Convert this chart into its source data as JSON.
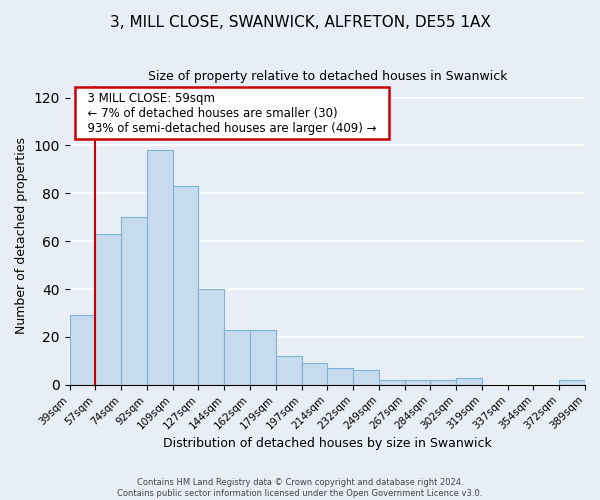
{
  "title": "3, MILL CLOSE, SWANWICK, ALFRETON, DE55 1AX",
  "subtitle": "Size of property relative to detached houses in Swanwick",
  "xlabel": "Distribution of detached houses by size in Swanwick",
  "ylabel": "Number of detached properties",
  "tick_labels": [
    "39sqm",
    "57sqm",
    "74sqm",
    "92sqm",
    "109sqm",
    "127sqm",
    "144sqm",
    "162sqm",
    "179sqm",
    "197sqm",
    "214sqm",
    "232sqm",
    "249sqm",
    "267sqm",
    "284sqm",
    "302sqm",
    "319sqm",
    "337sqm",
    "354sqm",
    "372sqm",
    "389sqm"
  ],
  "bar_heights": [
    29,
    63,
    70,
    98,
    83,
    40,
    23,
    23,
    12,
    9,
    7,
    6,
    2,
    2,
    2,
    3,
    0,
    0,
    0,
    2
  ],
  "bar_color": "#c6dcee",
  "bar_edge_color": "#7fb3d3",
  "ylim": [
    0,
    125
  ],
  "yticks": [
    0,
    20,
    40,
    60,
    80,
    100,
    120
  ],
  "red_line_bin": 1,
  "annotation_title": "3 MILL CLOSE: 59sqm",
  "annotation_line1": "← 7% of detached houses are smaller (30)",
  "annotation_line2": "93% of semi-detached houses are larger (409) →",
  "annotation_box_color": "#ffffff",
  "annotation_box_edge": "#cc0000",
  "footer1": "Contains HM Land Registry data © Crown copyright and database right 2024.",
  "footer2": "Contains public sector information licensed under the Open Government Licence v3.0.",
  "background_color": "#e8eef5"
}
